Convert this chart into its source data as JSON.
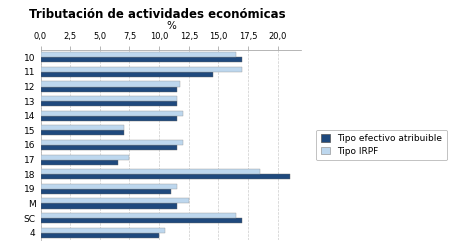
{
  "title": "Tributación de actividades económicas",
  "xlabel": "%",
  "categories": [
    "10",
    "11",
    "12",
    "13",
    "14",
    "15",
    "16",
    "17",
    "18",
    "19",
    "M",
    "SC",
    "4"
  ],
  "tipo_efectivo": [
    17.0,
    14.5,
    11.5,
    11.5,
    11.5,
    7.0,
    11.5,
    6.5,
    21.0,
    11.0,
    11.5,
    17.0,
    10.0
  ],
  "tipo_irpf": [
    16.5,
    17.0,
    11.8,
    11.5,
    12.0,
    7.0,
    12.0,
    7.5,
    18.5,
    11.5,
    12.5,
    16.5,
    10.5
  ],
  "color_efectivo": "#1F497D",
  "color_irpf": "#BDD7EE",
  "xlim": [
    0,
    22
  ],
  "xticks": [
    0.0,
    2.5,
    5.0,
    7.5,
    10.0,
    12.5,
    15.0,
    17.5,
    20.0
  ],
  "xtick_labels": [
    "0,0",
    "2,5",
    "5,0",
    "7,5",
    "10,0",
    "12,5",
    "15,0",
    "17,5",
    "20,0"
  ],
  "legend_efectivo": "Tipo efectivo atribuible",
  "legend_irpf": "Tipo IRPF",
  "background_color": "#FFFFFF",
  "grid_color": "#CCCCCC"
}
